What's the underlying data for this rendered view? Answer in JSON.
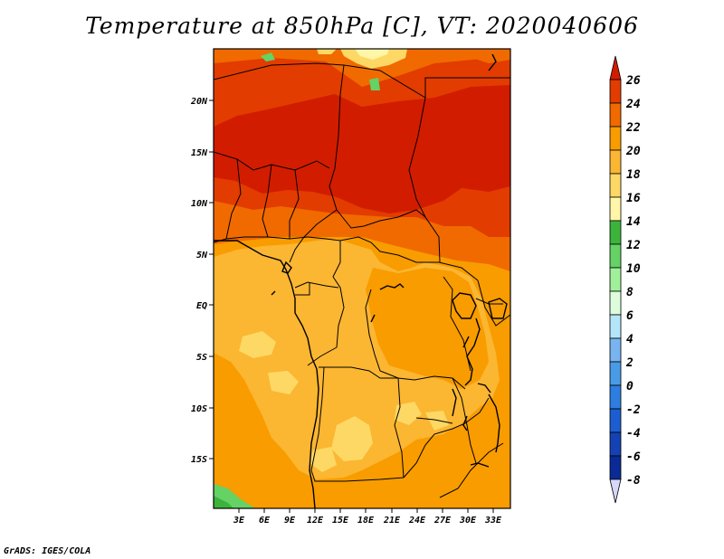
{
  "title": "Temperature at 850hPa [C], VT: 2020040606",
  "credit": "GrADS: IGES/COLA",
  "map": {
    "lat_ticks": [
      "20N",
      "15N",
      "10N",
      "5N",
      "EQ",
      "5S",
      "10S",
      "15S"
    ],
    "lon_ticks": [
      "3E",
      "6E",
      "9E",
      "12E",
      "15E",
      "18E",
      "21E",
      "24E",
      "27E",
      "30E",
      "33E"
    ]
  },
  "colorbar": {
    "labels": [
      "26",
      "24",
      "22",
      "20",
      "18",
      "16",
      "14",
      "12",
      "10",
      "8",
      "6",
      "4",
      "2",
      "0",
      "-2",
      "-4",
      "-6",
      "-8"
    ],
    "colors": {
      "gt26": "#d21c00",
      "24_26": "#e23c00",
      "22_24": "#f06a00",
      "20_22": "#f89c00",
      "18_20": "#fbb632",
      "16_18": "#fed864",
      "14_16": "#fff6a8",
      "12_14": "#3cb43c",
      "10_12": "#64d264",
      "8_10": "#a0f09a",
      "6_8": "#dcfcdc",
      "4_6": "#b4e6fa",
      "2_4": "#78b4f0",
      "0_2": "#4a9be6",
      "-2_0": "#2c7ee0",
      "-4_-2": "#1c5ed2",
      "-6_-4": "#1442b4",
      "-8_-6": "#0a2a96",
      "lt-8": "#0a1464",
      "below_end": "#d7d7f8"
    }
  }
}
